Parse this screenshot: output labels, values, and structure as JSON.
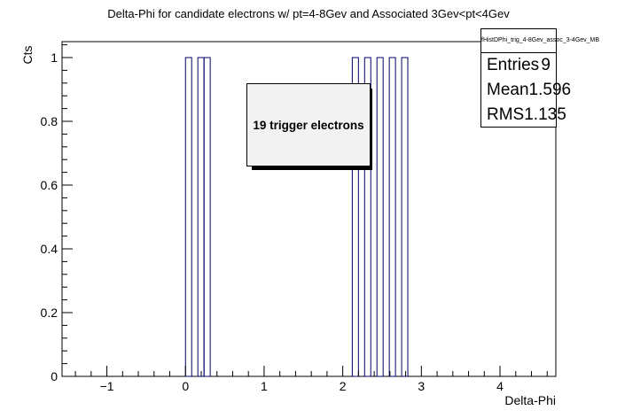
{
  "chart_data": {
    "type": "bar",
    "title": "Delta-Phi for candidate electrons w/ pt=4-8Gev and Associated 3Gev<pt<4Gev",
    "xlabel": "Delta-Phi",
    "ylabel": "Cts",
    "xlim": [
      -1.57,
      4.71
    ],
    "ylim": [
      0,
      1.05
    ],
    "bin_width": 0.0785,
    "x_ticks": [
      -1,
      0,
      1,
      2,
      3,
      4
    ],
    "x_tick_labels": [
      "−1",
      "0",
      "1",
      "2",
      "3",
      "4"
    ],
    "y_ticks": [
      0,
      0.2,
      0.4,
      0.6,
      0.8,
      1
    ],
    "y_tick_labels": [
      "0",
      "0.2",
      "0.4",
      "0.6",
      "0.8",
      "1"
    ],
    "bins": [
      {
        "x": 0.0,
        "value": 1
      },
      {
        "x": 0.157,
        "value": 1
      },
      {
        "x": 0.236,
        "value": 1
      },
      {
        "x": 2.121,
        "value": 1
      },
      {
        "x": 2.278,
        "value": 1
      },
      {
        "x": 2.435,
        "value": 1
      },
      {
        "x": 2.592,
        "value": 1
      },
      {
        "x": 2.749,
        "value": 1
      }
    ],
    "bar_color": "#000066",
    "grid": false
  },
  "stats": {
    "name": "fHistDPhi_trig_4-8Gev_assoc_3-4Gev_MB",
    "rows": [
      {
        "label": "Entries",
        "value": "9"
      },
      {
        "label": "Mean",
        "value": "1.596"
      },
      {
        "label": "RMS",
        "value": "1.135"
      }
    ]
  },
  "annotation": "19 trigger electrons"
}
